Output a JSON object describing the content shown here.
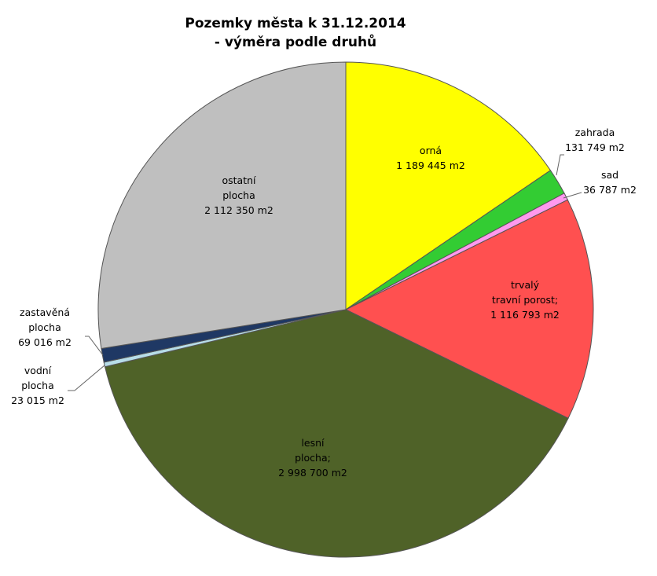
{
  "chart_data": {
    "type": "pie",
    "title": "Pozemky města k 31.12.2014",
    "subtitle": "- výměra podle druhů",
    "unit": "m2",
    "slices": [
      {
        "name": "orná",
        "value": 1189445,
        "color": "#ffff00",
        "label_lines": [
          "orná",
          "1 189 445 m2"
        ]
      },
      {
        "name": "zahrada",
        "value": 131749,
        "color": "#33cc33",
        "label_lines": [
          "zahrada",
          "131 749 m2"
        ]
      },
      {
        "name": "sad",
        "value": 36787,
        "color": "#ff99ee",
        "label_lines": [
          "sad",
          "36 787 m2"
        ]
      },
      {
        "name": "trvalý travní porost",
        "value": 1116793,
        "color": "#ff5050",
        "label_lines": [
          "trvalý",
          "travní porost;",
          "1 116 793 m2"
        ]
      },
      {
        "name": "lesní plocha",
        "value": 2998700,
        "color": "#4f6228",
        "label_lines": [
          "lesní",
          "plocha;",
          "2 998 700 m2"
        ]
      },
      {
        "name": "vodní plocha",
        "value": 23015,
        "color": "#b7dde8",
        "label_lines": [
          "vodní",
          "plocha",
          "23 015 m2"
        ]
      },
      {
        "name": "zastavěná plocha",
        "value": 69016,
        "color": "#1f3864",
        "label_lines": [
          "zastavěná",
          "plocha",
          "69 016 m2"
        ]
      },
      {
        "name": "ostatní plocha",
        "value": 2112350,
        "color": "#bfbfbf",
        "label_lines": [
          "ostatní",
          "plocha",
          "2 112 350 m2"
        ]
      }
    ]
  }
}
